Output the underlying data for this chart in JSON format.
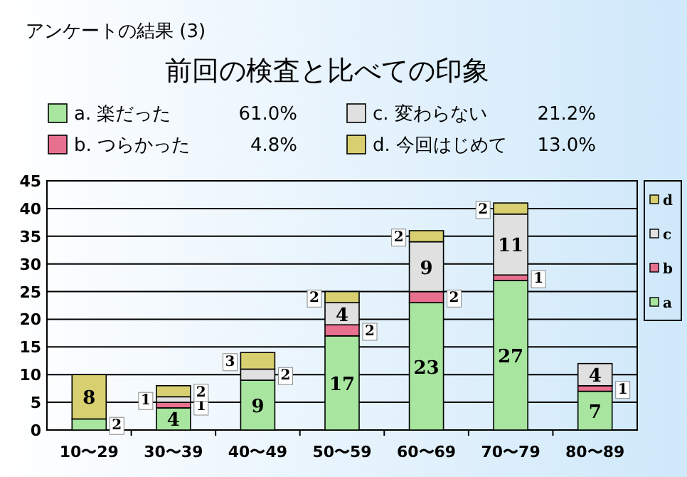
{
  "chart_data": {
    "type": "bar",
    "stacked": true,
    "title": "前回の検査と比べての印象",
    "subtitle": "アンケートの結果 (3)",
    "categories": [
      "10〜29",
      "30〜39",
      "40〜49",
      "50〜59",
      "60〜69",
      "70〜79",
      "80〜89"
    ],
    "series": [
      {
        "name": "a. 楽だった",
        "color": "#a8e6a0",
        "values": [
          2,
          4,
          9,
          17,
          23,
          27,
          7
        ]
      },
      {
        "name": "b. つらかった",
        "color": "#e8708f",
        "values": [
          null,
          1,
          null,
          2,
          2,
          1,
          1
        ]
      },
      {
        "name": "c. 変わらない",
        "color": "#e0e0e0",
        "values": [
          null,
          1,
          2,
          4,
          9,
          11,
          4
        ]
      },
      {
        "name": "d. 今回はじめて",
        "color": "#d8d070",
        "values": [
          8,
          2,
          3,
          2,
          2,
          2,
          null
        ]
      }
    ],
    "annotations": [
      "61.0%",
      "4.8%",
      "21.2%",
      "13.0%",
      "a",
      "b",
      "c",
      "d"
    ],
    "ylim": [
      0,
      45
    ],
    "yticks": [
      0,
      5,
      10,
      15,
      20,
      25,
      30,
      35,
      40,
      45
    ],
    "grid": "y",
    "data_labels": true,
    "legend": "top"
  }
}
